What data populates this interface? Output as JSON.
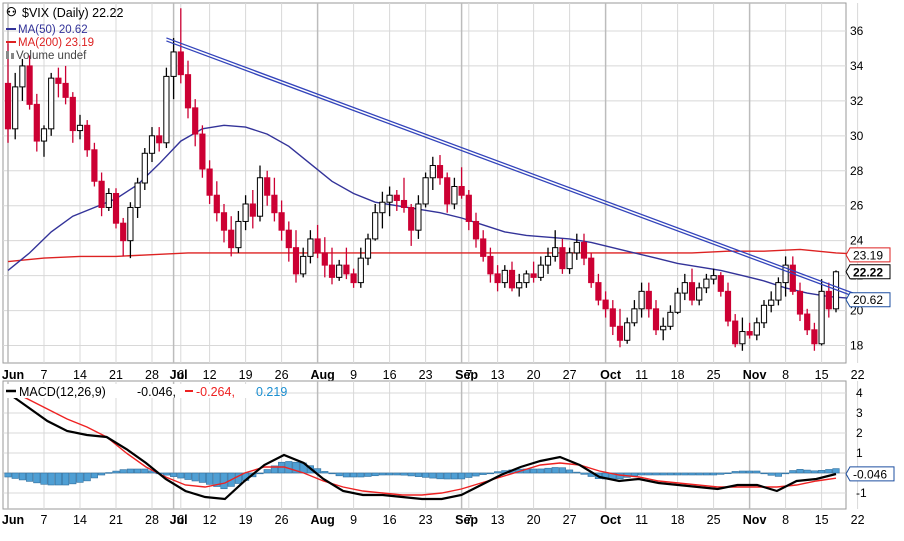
{
  "colors": {
    "up_candle": "#000000",
    "down_candle": "#cc0033",
    "ma50": "#333399",
    "ma200": "#dd2222",
    "trendline": "#3344bb",
    "macd_line": "#000000",
    "signal_line": "#ee2222",
    "histogram": "#4f9fd4",
    "grid": "#d8d8d8",
    "label_box": "#1d4fa0"
  },
  "chart_data": [
    {
      "type": "candlestick",
      "legend": {
        "title": "$VIX (Daily) 22.22",
        "ma50": "MA(50) 20.62",
        "ma200": "MA(200) 23.19",
        "volume": "Volume undef"
      },
      "x_ticks": [
        "Jun",
        "7",
        "14",
        "21",
        "28",
        "Jul",
        "6",
        "12",
        "19",
        "26",
        "Aug",
        "9",
        "16",
        "23",
        "Sep",
        "7",
        "13",
        "20",
        "27",
        "Oct",
        "11",
        "18",
        "25",
        "Nov",
        "8",
        "15",
        "22"
      ],
      "x_tick_days": [
        0,
        5,
        10,
        15,
        20,
        23,
        24,
        28,
        33,
        38,
        43,
        48,
        53,
        58,
        63,
        64,
        68,
        73,
        78,
        83,
        88,
        93,
        98,
        103,
        108,
        113,
        118
      ],
      "y_ticks": [
        "18",
        "20",
        "22",
        "24",
        "26",
        "28",
        "30",
        "32",
        "34",
        "36"
      ],
      "y_range": [
        17,
        37.6
      ],
      "price_labels": {
        "ma200": "23.19",
        "close": "22.22",
        "ma50": "20.62"
      },
      "trendline": {
        "start": [
          22,
          35.6
        ],
        "end": [
          120,
          20.6
        ]
      },
      "candles": [
        [
          33.0,
          35.3,
          29.6,
          30.4
        ],
        [
          30.4,
          33.6,
          29.8,
          32.8
        ],
        [
          32.8,
          34.4,
          32.0,
          34.0
        ],
        [
          34.0,
          34.6,
          31.5,
          31.8
        ],
        [
          31.8,
          32.4,
          29.1,
          29.7
        ],
        [
          29.7,
          30.6,
          28.8,
          30.4
        ],
        [
          30.4,
          33.6,
          30.0,
          33.3
        ],
        [
          33.3,
          33.9,
          32.2,
          33.0
        ],
        [
          33.0,
          34.0,
          31.8,
          32.2
        ],
        [
          32.2,
          32.5,
          29.6,
          30.3
        ],
        [
          30.3,
          31.2,
          29.8,
          30.6
        ],
        [
          30.6,
          30.9,
          28.8,
          29.2
        ],
        [
          29.2,
          29.6,
          27.1,
          27.4
        ],
        [
          27.4,
          27.9,
          25.4,
          25.9
        ],
        [
          25.9,
          27.0,
          25.7,
          26.7
        ],
        [
          26.7,
          27.0,
          24.7,
          25.0
        ],
        [
          25.0,
          25.3,
          23.1,
          24.0
        ],
        [
          24.0,
          26.2,
          23.0,
          25.9
        ],
        [
          25.9,
          27.6,
          25.3,
          27.3
        ],
        [
          27.3,
          29.3,
          26.9,
          29.0
        ],
        [
          29.0,
          30.5,
          28.5,
          30.0
        ],
        [
          30.0,
          30.5,
          29.1,
          29.6
        ],
        [
          29.6,
          33.9,
          29.3,
          33.4
        ],
        [
          33.4,
          35.6,
          32.1,
          34.8
        ],
        [
          34.8,
          37.3,
          33.0,
          33.5
        ],
        [
          33.5,
          34.3,
          31.0,
          31.6
        ],
        [
          31.6,
          32.1,
          29.4,
          30.1
        ],
        [
          30.1,
          30.6,
          27.6,
          28.1
        ],
        [
          28.1,
          28.6,
          26.1,
          26.6
        ],
        [
          26.6,
          27.4,
          25.1,
          25.6
        ],
        [
          25.6,
          26.1,
          23.9,
          24.6
        ],
        [
          24.6,
          25.4,
          23.1,
          23.6
        ],
        [
          23.6,
          25.7,
          23.3,
          25.1
        ],
        [
          25.1,
          26.6,
          24.6,
          26.1
        ],
        [
          26.1,
          26.9,
          24.7,
          25.4
        ],
        [
          25.4,
          28.3,
          25.1,
          27.6
        ],
        [
          27.6,
          28.0,
          26.0,
          26.6
        ],
        [
          26.6,
          27.6,
          25.1,
          25.6
        ],
        [
          25.6,
          26.3,
          24.0,
          24.6
        ],
        [
          24.6,
          25.1,
          22.8,
          23.6
        ],
        [
          23.6,
          24.6,
          21.6,
          22.1
        ],
        [
          22.1,
          23.6,
          21.9,
          23.1
        ],
        [
          23.1,
          24.6,
          22.7,
          24.1
        ],
        [
          24.1,
          24.9,
          23.0,
          23.3
        ],
        [
          23.3,
          24.2,
          21.9,
          22.6
        ],
        [
          22.6,
          23.6,
          21.5,
          21.9
        ],
        [
          21.9,
          22.9,
          21.7,
          22.6
        ],
        [
          22.6,
          23.6,
          21.8,
          22.1
        ],
        [
          22.1,
          22.4,
          21.3,
          21.6
        ],
        [
          21.6,
          23.6,
          21.3,
          23.0
        ],
        [
          23.0,
          24.4,
          22.6,
          24.1
        ],
        [
          24.1,
          26.1,
          24.0,
          25.6
        ],
        [
          25.6,
          26.8,
          24.7,
          26.2
        ],
        [
          26.2,
          27.1,
          25.4,
          26.6
        ],
        [
          26.6,
          26.9,
          25.7,
          26.3
        ],
        [
          26.3,
          27.6,
          25.6,
          25.9
        ],
        [
          25.9,
          26.1,
          23.7,
          24.6
        ],
        [
          24.6,
          26.6,
          24.1,
          26.1
        ],
        [
          26.1,
          27.9,
          25.9,
          27.6
        ],
        [
          27.6,
          28.8,
          26.9,
          28.3
        ],
        [
          28.3,
          28.9,
          27.2,
          27.6
        ],
        [
          27.6,
          27.9,
          25.6,
          26.1
        ],
        [
          26.1,
          27.6,
          25.8,
          27.1
        ],
        [
          27.1,
          28.2,
          26.4,
          26.6
        ],
        [
          26.6,
          26.9,
          24.6,
          25.1
        ],
        [
          25.1,
          25.6,
          23.6,
          24.1
        ],
        [
          24.1,
          24.6,
          22.8,
          23.1
        ],
        [
          23.1,
          23.6,
          21.6,
          22.1
        ],
        [
          22.1,
          22.6,
          21.1,
          21.6
        ],
        [
          21.6,
          22.6,
          21.3,
          22.3
        ],
        [
          22.3,
          22.8,
          21.1,
          21.3
        ],
        [
          21.3,
          22.1,
          20.8,
          21.6
        ],
        [
          21.6,
          22.3,
          21.3,
          22.1
        ],
        [
          22.1,
          22.8,
          21.6,
          21.9
        ],
        [
          21.9,
          23.1,
          21.7,
          22.6
        ],
        [
          22.6,
          23.6,
          22.1,
          23.1
        ],
        [
          23.1,
          24.6,
          22.8,
          23.6
        ],
        [
          23.6,
          24.1,
          22.1,
          22.4
        ],
        [
          22.4,
          23.6,
          22.1,
          23.3
        ],
        [
          23.3,
          24.4,
          22.9,
          23.9
        ],
        [
          23.9,
          24.4,
          22.6,
          23.0
        ],
        [
          23.0,
          23.3,
          21.3,
          21.6
        ],
        [
          21.6,
          22.1,
          20.3,
          20.6
        ],
        [
          20.6,
          21.1,
          19.6,
          20.1
        ],
        [
          20.1,
          20.6,
          18.6,
          19.1
        ],
        [
          19.1,
          20.1,
          17.9,
          18.3
        ],
        [
          18.3,
          19.6,
          18.1,
          19.3
        ],
        [
          19.3,
          20.6,
          19.1,
          20.1
        ],
        [
          20.1,
          21.6,
          19.6,
          21.1
        ],
        [
          21.1,
          21.6,
          19.6,
          20.1
        ],
        [
          20.1,
          20.6,
          18.6,
          18.9
        ],
        [
          18.9,
          19.6,
          18.3,
          19.1
        ],
        [
          19.1,
          20.3,
          18.9,
          19.9
        ],
        [
          19.9,
          21.3,
          19.8,
          21.0
        ],
        [
          21.0,
          22.1,
          20.6,
          21.6
        ],
        [
          21.6,
          22.4,
          20.3,
          20.6
        ],
        [
          20.6,
          21.6,
          20.3,
          21.3
        ],
        [
          21.3,
          22.1,
          21.0,
          21.8
        ],
        [
          21.8,
          22.4,
          21.5,
          22.0
        ],
        [
          22.0,
          22.2,
          20.8,
          21.1
        ],
        [
          21.1,
          21.6,
          19.1,
          19.4
        ],
        [
          19.4,
          19.8,
          17.9,
          18.1
        ],
        [
          18.1,
          19.6,
          17.7,
          18.8
        ],
        [
          18.8,
          19.3,
          18.4,
          18.6
        ],
        [
          18.6,
          19.6,
          18.3,
          19.3
        ],
        [
          19.3,
          20.6,
          19.0,
          20.3
        ],
        [
          20.3,
          21.1,
          19.9,
          20.6
        ],
        [
          20.6,
          21.9,
          20.3,
          21.6
        ],
        [
          21.6,
          23.1,
          20.8,
          22.6
        ],
        [
          22.6,
          23.1,
          20.9,
          21.1
        ],
        [
          21.1,
          21.6,
          19.4,
          19.8
        ],
        [
          19.8,
          20.1,
          18.6,
          18.9
        ],
        [
          18.9,
          19.3,
          17.7,
          18.1
        ],
        [
          18.1,
          21.8,
          18.0,
          21.1
        ],
        [
          21.1,
          21.6,
          19.6,
          20.1
        ],
        [
          20.1,
          22.3,
          19.9,
          22.22
        ]
      ],
      "ma50": [
        [
          0,
          22.3
        ],
        [
          3,
          23.3
        ],
        [
          6,
          24.5
        ],
        [
          9,
          25.4
        ],
        [
          12,
          25.9
        ],
        [
          15,
          26.4
        ],
        [
          18,
          27.2
        ],
        [
          21,
          28.4
        ],
        [
          24,
          29.7
        ],
        [
          27,
          30.4
        ],
        [
          30,
          30.6
        ],
        [
          33,
          30.5
        ],
        [
          36,
          30.1
        ],
        [
          39,
          29.4
        ],
        [
          42,
          28.4
        ],
        [
          45,
          27.4
        ],
        [
          48,
          26.7
        ],
        [
          51,
          26.2
        ],
        [
          54,
          26.0
        ],
        [
          57,
          25.8
        ],
        [
          60,
          25.6
        ],
        [
          63,
          25.3
        ],
        [
          66,
          24.9
        ],
        [
          69,
          24.5
        ],
        [
          72,
          24.3
        ],
        [
          75,
          24.2
        ],
        [
          78,
          24.1
        ],
        [
          81,
          23.9
        ],
        [
          84,
          23.6
        ],
        [
          87,
          23.3
        ],
        [
          90,
          23.0
        ],
        [
          93,
          22.7
        ],
        [
          96,
          22.5
        ],
        [
          99,
          22.3
        ],
        [
          102,
          22.0
        ],
        [
          105,
          21.7
        ],
        [
          108,
          21.3
        ],
        [
          111,
          21.0
        ],
        [
          114,
          20.8
        ],
        [
          117,
          20.7
        ],
        [
          120,
          20.62
        ]
      ],
      "ma200": [
        [
          0,
          22.8
        ],
        [
          5,
          23.0
        ],
        [
          10,
          23.1
        ],
        [
          15,
          23.1
        ],
        [
          20,
          23.2
        ],
        [
          25,
          23.3
        ],
        [
          30,
          23.3
        ],
        [
          35,
          23.3
        ],
        [
          40,
          23.3
        ],
        [
          45,
          23.3
        ],
        [
          50,
          23.3
        ],
        [
          55,
          23.3
        ],
        [
          60,
          23.3
        ],
        [
          65,
          23.3
        ],
        [
          70,
          23.3
        ],
        [
          75,
          23.3
        ],
        [
          80,
          23.3
        ],
        [
          85,
          23.3
        ],
        [
          90,
          23.3
        ],
        [
          95,
          23.3
        ],
        [
          100,
          23.4
        ],
        [
          105,
          23.4
        ],
        [
          110,
          23.5
        ],
        [
          115,
          23.3
        ],
        [
          120,
          23.19
        ]
      ]
    },
    {
      "type": "line",
      "legend": {
        "title": "MACD(12,26,9)",
        "macd_value": "-0.046,",
        "signal_value": "-0.264,",
        "hist_value": "0.219"
      },
      "y_ticks": [
        "4",
        "3",
        "2",
        "1",
        "-1"
      ],
      "y_range": [
        -1.8,
        4.6
      ],
      "value_label": "-0.046",
      "x_ticks": [
        "Jun",
        "7",
        "14",
        "21",
        "28",
        "Jul",
        "6",
        "12",
        "19",
        "26",
        "Aug",
        "9",
        "16",
        "23",
        "Sep",
        "7",
        "13",
        "20",
        "27",
        "Oct",
        "11",
        "18",
        "25",
        "Nov",
        "8",
        "15",
        "22"
      ],
      "series": [
        {
          "name": "MACD(12,26,9)",
          "values": [
            4.0,
            3.3,
            2.6,
            2.1,
            1.9,
            1.8,
            1.2,
            0.5,
            -0.3,
            -0.9,
            -1.2,
            -1.3,
            -0.4,
            0.4,
            0.9,
            0.5,
            -0.3,
            -0.9,
            -1.1,
            -1.1,
            -1.2,
            -1.3,
            -1.3,
            -1.1,
            -0.6,
            -0.1,
            0.3,
            0.6,
            0.8,
            0.4,
            -0.2,
            -0.4,
            -0.3,
            -0.5,
            -0.6,
            -0.7,
            -0.8,
            -0.6,
            -0.6,
            -0.9,
            -0.4,
            -0.3,
            -0.05
          ]
        },
        {
          "name": "Signal",
          "values": [
            4.2,
            3.7,
            3.2,
            2.7,
            2.3,
            1.8,
            1.0,
            0.3,
            -0.2,
            -0.6,
            -0.7,
            -0.5,
            0.0,
            0.3,
            0.3,
            0.0,
            -0.4,
            -0.7,
            -0.9,
            -1.0,
            -1.1,
            -1.1,
            -1.0,
            -0.8,
            -0.5,
            -0.2,
            0.1,
            0.4,
            0.5,
            0.4,
            0.1,
            -0.1,
            -0.2,
            -0.4,
            -0.5,
            -0.6,
            -0.7,
            -0.7,
            -0.7,
            -0.7,
            -0.6,
            -0.4,
            -0.26
          ]
        },
        {
          "name": "Histogram",
          "values": [
            -0.2,
            -0.4,
            -0.6,
            -0.6,
            -0.4,
            0.0,
            0.2,
            0.2,
            -0.1,
            -0.3,
            -0.5,
            -0.8,
            -0.4,
            0.1,
            0.6,
            0.5,
            0.1,
            -0.2,
            -0.2,
            -0.1,
            -0.1,
            -0.2,
            -0.3,
            -0.3,
            -0.1,
            0.1,
            0.2,
            0.2,
            0.3,
            0.0,
            -0.3,
            -0.3,
            -0.1,
            -0.1,
            -0.1,
            -0.1,
            -0.1,
            0.1,
            0.1,
            -0.2,
            0.2,
            0.1,
            0.22
          ]
        }
      ]
    }
  ]
}
